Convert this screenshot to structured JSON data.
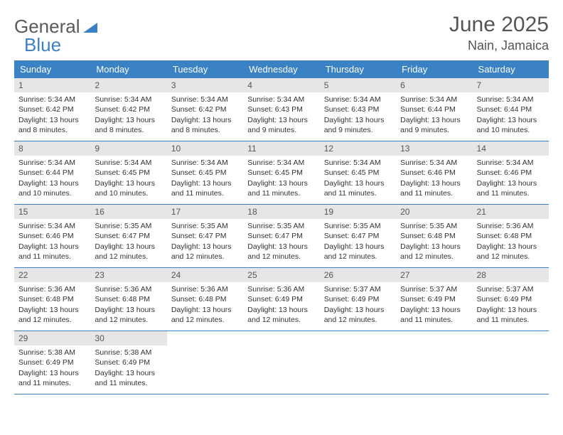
{
  "brand": {
    "part1": "General",
    "part2": "Blue"
  },
  "title": {
    "monthYear": "June 2025",
    "location": "Nain, Jamaica"
  },
  "colors": {
    "accent": "#3b82c4",
    "dateBar": "#e6e6e6",
    "text": "#333333",
    "headerText": "#555555"
  },
  "dayHeaders": [
    "Sunday",
    "Monday",
    "Tuesday",
    "Wednesday",
    "Thursday",
    "Friday",
    "Saturday"
  ],
  "weeks": [
    [
      {
        "date": "1",
        "sunrise": "5:34 AM",
        "sunset": "6:42 PM",
        "daylight": "13 hours and 8 minutes."
      },
      {
        "date": "2",
        "sunrise": "5:34 AM",
        "sunset": "6:42 PM",
        "daylight": "13 hours and 8 minutes."
      },
      {
        "date": "3",
        "sunrise": "5:34 AM",
        "sunset": "6:42 PM",
        "daylight": "13 hours and 8 minutes."
      },
      {
        "date": "4",
        "sunrise": "5:34 AM",
        "sunset": "6:43 PM",
        "daylight": "13 hours and 9 minutes."
      },
      {
        "date": "5",
        "sunrise": "5:34 AM",
        "sunset": "6:43 PM",
        "daylight": "13 hours and 9 minutes."
      },
      {
        "date": "6",
        "sunrise": "5:34 AM",
        "sunset": "6:44 PM",
        "daylight": "13 hours and 9 minutes."
      },
      {
        "date": "7",
        "sunrise": "5:34 AM",
        "sunset": "6:44 PM",
        "daylight": "13 hours and 10 minutes."
      }
    ],
    [
      {
        "date": "8",
        "sunrise": "5:34 AM",
        "sunset": "6:44 PM",
        "daylight": "13 hours and 10 minutes."
      },
      {
        "date": "9",
        "sunrise": "5:34 AM",
        "sunset": "6:45 PM",
        "daylight": "13 hours and 10 minutes."
      },
      {
        "date": "10",
        "sunrise": "5:34 AM",
        "sunset": "6:45 PM",
        "daylight": "13 hours and 11 minutes."
      },
      {
        "date": "11",
        "sunrise": "5:34 AM",
        "sunset": "6:45 PM",
        "daylight": "13 hours and 11 minutes."
      },
      {
        "date": "12",
        "sunrise": "5:34 AM",
        "sunset": "6:45 PM",
        "daylight": "13 hours and 11 minutes."
      },
      {
        "date": "13",
        "sunrise": "5:34 AM",
        "sunset": "6:46 PM",
        "daylight": "13 hours and 11 minutes."
      },
      {
        "date": "14",
        "sunrise": "5:34 AM",
        "sunset": "6:46 PM",
        "daylight": "13 hours and 11 minutes."
      }
    ],
    [
      {
        "date": "15",
        "sunrise": "5:34 AM",
        "sunset": "6:46 PM",
        "daylight": "13 hours and 11 minutes."
      },
      {
        "date": "16",
        "sunrise": "5:35 AM",
        "sunset": "6:47 PM",
        "daylight": "13 hours and 12 minutes."
      },
      {
        "date": "17",
        "sunrise": "5:35 AM",
        "sunset": "6:47 PM",
        "daylight": "13 hours and 12 minutes."
      },
      {
        "date": "18",
        "sunrise": "5:35 AM",
        "sunset": "6:47 PM",
        "daylight": "13 hours and 12 minutes."
      },
      {
        "date": "19",
        "sunrise": "5:35 AM",
        "sunset": "6:47 PM",
        "daylight": "13 hours and 12 minutes."
      },
      {
        "date": "20",
        "sunrise": "5:35 AM",
        "sunset": "6:48 PM",
        "daylight": "13 hours and 12 minutes."
      },
      {
        "date": "21",
        "sunrise": "5:36 AM",
        "sunset": "6:48 PM",
        "daylight": "13 hours and 12 minutes."
      }
    ],
    [
      {
        "date": "22",
        "sunrise": "5:36 AM",
        "sunset": "6:48 PM",
        "daylight": "13 hours and 12 minutes."
      },
      {
        "date": "23",
        "sunrise": "5:36 AM",
        "sunset": "6:48 PM",
        "daylight": "13 hours and 12 minutes."
      },
      {
        "date": "24",
        "sunrise": "5:36 AM",
        "sunset": "6:48 PM",
        "daylight": "13 hours and 12 minutes."
      },
      {
        "date": "25",
        "sunrise": "5:36 AM",
        "sunset": "6:49 PM",
        "daylight": "13 hours and 12 minutes."
      },
      {
        "date": "26",
        "sunrise": "5:37 AM",
        "sunset": "6:49 PM",
        "daylight": "13 hours and 12 minutes."
      },
      {
        "date": "27",
        "sunrise": "5:37 AM",
        "sunset": "6:49 PM",
        "daylight": "13 hours and 11 minutes."
      },
      {
        "date": "28",
        "sunrise": "5:37 AM",
        "sunset": "6:49 PM",
        "daylight": "13 hours and 11 minutes."
      }
    ],
    [
      {
        "date": "29",
        "sunrise": "5:38 AM",
        "sunset": "6:49 PM",
        "daylight": "13 hours and 11 minutes."
      },
      {
        "date": "30",
        "sunrise": "5:38 AM",
        "sunset": "6:49 PM",
        "daylight": "13 hours and 11 minutes."
      },
      {
        "empty": true
      },
      {
        "empty": true
      },
      {
        "empty": true
      },
      {
        "empty": true
      },
      {
        "empty": true
      }
    ]
  ],
  "labels": {
    "sunrise": "Sunrise:",
    "sunset": "Sunset:",
    "daylight": "Daylight:"
  }
}
